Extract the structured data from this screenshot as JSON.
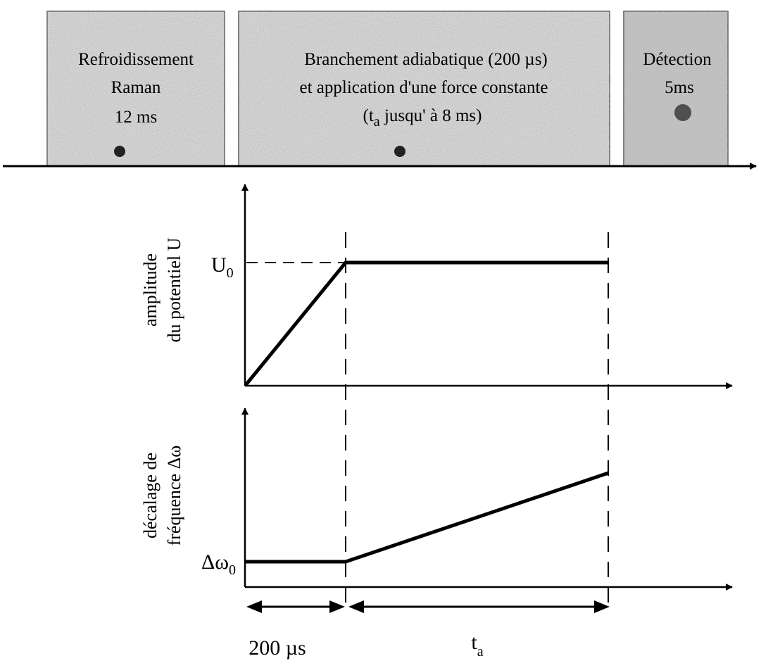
{
  "stages": [
    {
      "lines": [
        "Refroidissement",
        "Raman",
        "12 ms"
      ]
    },
    {
      "lines": [
        "Branchement adiabatique (200 µs)",
        "et application d'une force constante"
      ],
      "line3_prefix": "(t",
      "line3_sub": "a",
      "line3_suffix": " jusqu' à 8 ms)"
    },
    {
      "lines": [
        "Détection",
        "5ms"
      ]
    }
  ],
  "plot_amplitude": {
    "ylabel_line1": "amplitude",
    "ylabel_line2": "du potentiel U",
    "level_main": "U",
    "level_sub": "0"
  },
  "plot_frequency": {
    "ylabel_line1": "décalage de",
    "ylabel_line2": "fréquence Δω",
    "level_main": "Δω",
    "level_sub": "0"
  },
  "durations": {
    "first": "200 µs",
    "second_main": "t",
    "second_sub": "a"
  }
}
